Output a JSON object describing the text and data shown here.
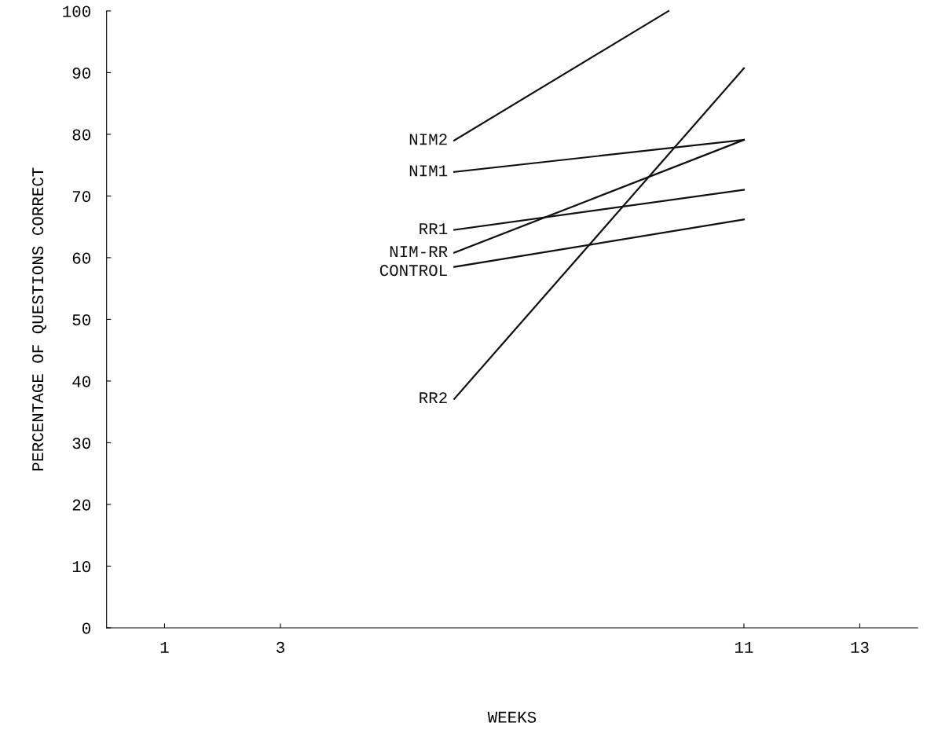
{
  "chart_data": {
    "type": "line",
    "xlabel": "WEEKS",
    "ylabel": "PERCENTAGE OF QUESTIONS CORRECT",
    "xlim": [
      0,
      14
    ],
    "xticks": [
      1,
      3,
      11,
      13
    ],
    "ylim": [
      0,
      100
    ],
    "yticks": [
      0,
      10,
      20,
      30,
      40,
      50,
      60,
      70,
      80,
      90,
      100
    ],
    "grid": false,
    "legend": false,
    "marker": "none",
    "line_style": "solid",
    "series": [
      {
        "name": "NIM2",
        "color": "#111111",
        "x": [
          6,
          9.7
        ],
        "values": [
          79.0,
          100
        ]
      },
      {
        "name": "NIM1",
        "color": "#111111",
        "x": [
          6,
          11
        ],
        "values": [
          73.9,
          79.1
        ]
      },
      {
        "name": "RR1",
        "color": "#111111",
        "x": [
          6,
          11
        ],
        "values": [
          64.5,
          71.0
        ]
      },
      {
        "name": "NIM-RR",
        "color": "#111111",
        "x": [
          6,
          11
        ],
        "values": [
          60.8,
          79.1
        ]
      },
      {
        "name": "CONTROL",
        "color": "#111111",
        "x": [
          6,
          11
        ],
        "values": [
          58.5,
          66.2
        ]
      },
      {
        "name": "RR2",
        "color": "#111111",
        "x": [
          6,
          11
        ],
        "values": [
          37.1,
          90.7
        ]
      }
    ]
  }
}
